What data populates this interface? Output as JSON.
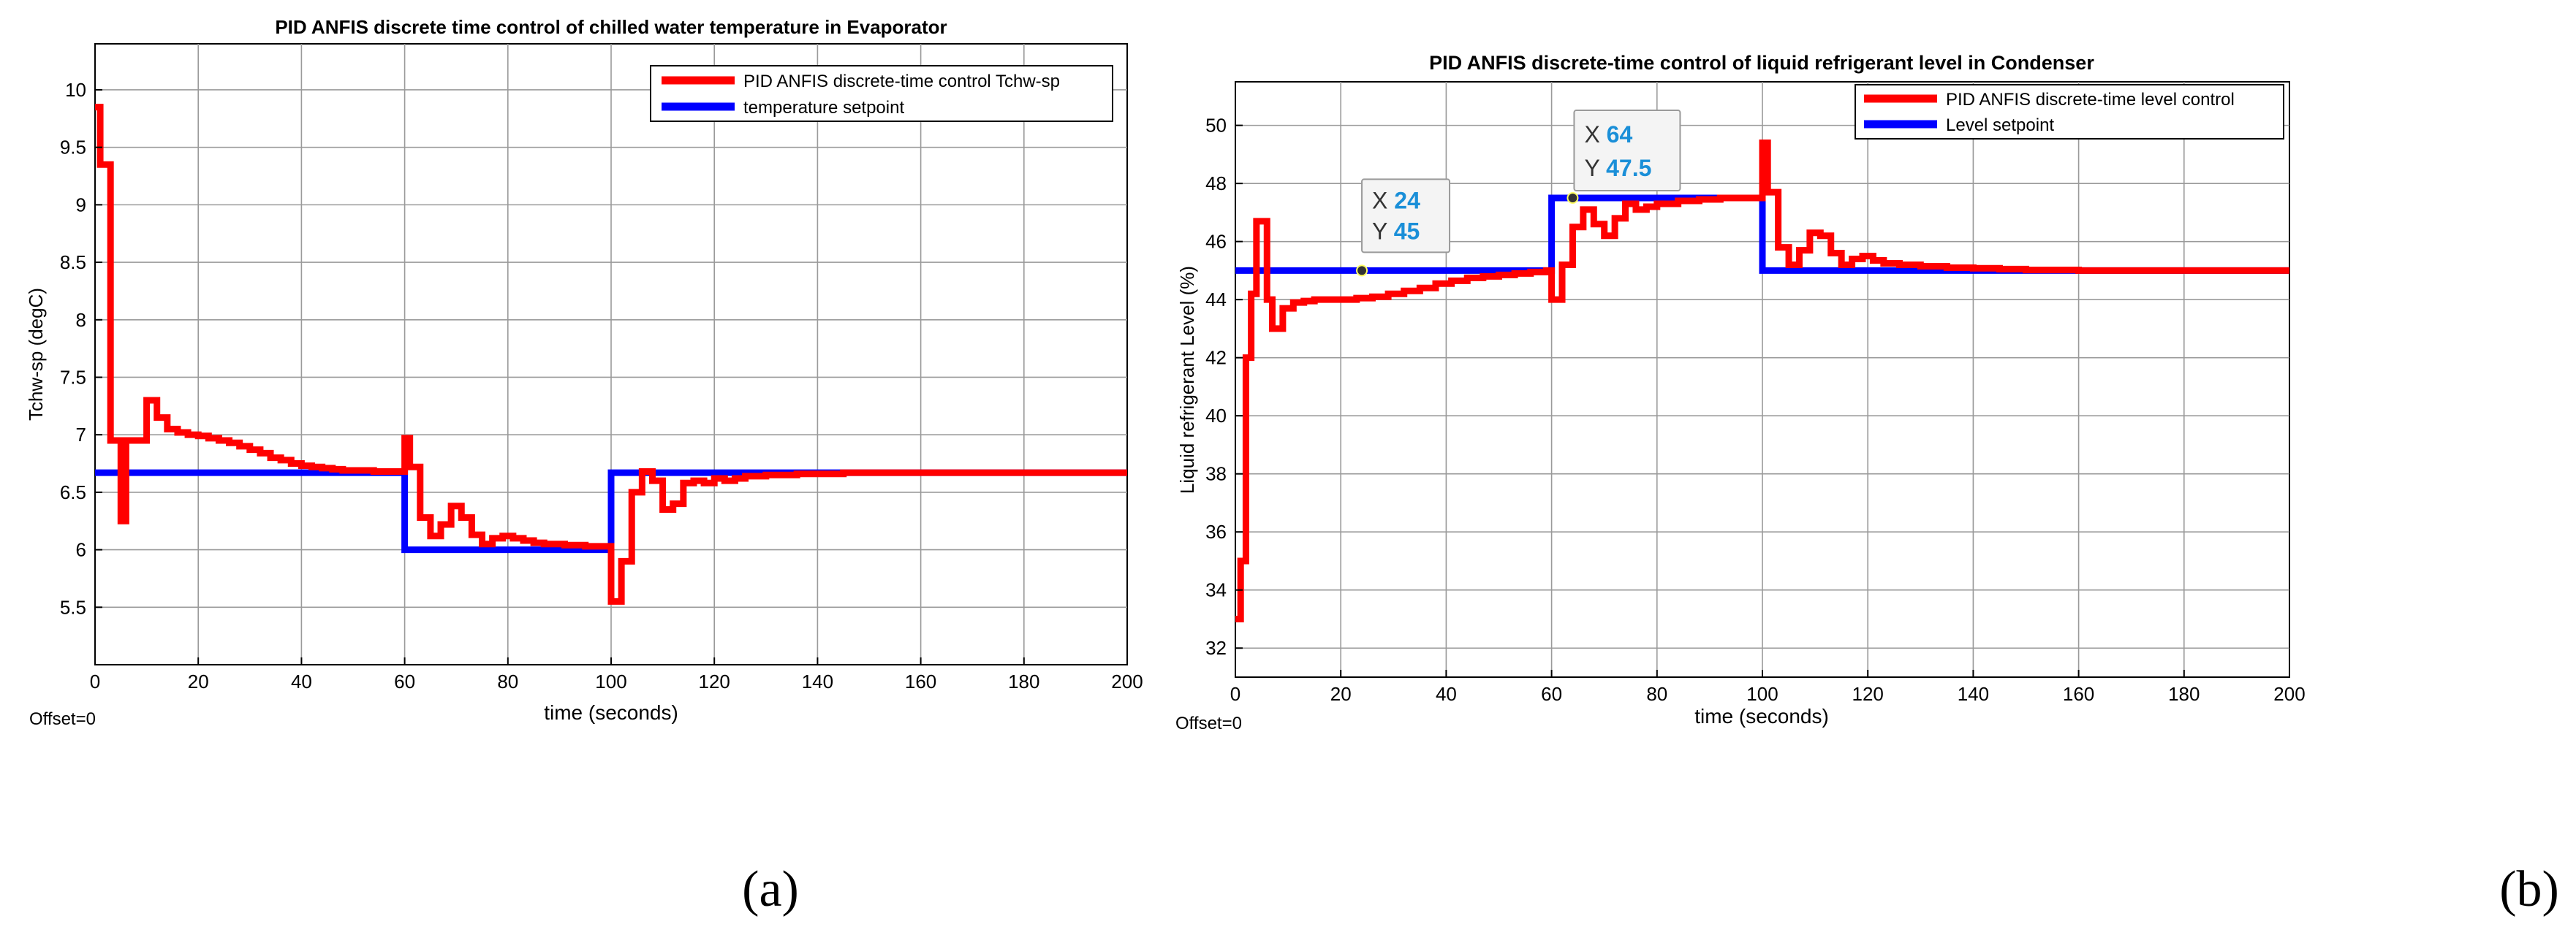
{
  "panels": [
    {
      "caption": "(a)",
      "offset_text": "Offset=0",
      "datatips": [],
      "chart_data": {
        "type": "line",
        "title": "PID ANFIS discrete time control of chilled water temperature in Evaporator",
        "xlabel": "time (seconds)",
        "ylabel": "Tchw-sp (degC)",
        "xlim": [
          0,
          200
        ],
        "ylim": [
          5,
          10.4
        ],
        "xticks": [
          0,
          20,
          40,
          60,
          80,
          100,
          120,
          140,
          160,
          180,
          200
        ],
        "yticks": [
          5.5,
          6,
          6.5,
          7,
          7.5,
          8,
          8.5,
          9,
          9.5,
          10
        ],
        "grid": true,
        "legend_position": "top-right",
        "series": [
          {
            "name": "PID ANFIS discrete-time control Tchw-sp",
            "color": "#ff0000",
            "step": true,
            "x": [
              0,
              1,
              3,
              4,
              5,
              6,
              7,
              8,
              10,
              12,
              14,
              16,
              18,
              20,
              22,
              24,
              26,
              28,
              30,
              32,
              34,
              36,
              38,
              40,
              42,
              44,
              46,
              48,
              50,
              52,
              54,
              56,
              58,
              60,
              61,
              63,
              65,
              67,
              69,
              71,
              73,
              75,
              77,
              79,
              81,
              83,
              85,
              87,
              89,
              91,
              93,
              95,
              97,
              99,
              100,
              102,
              104,
              106,
              108,
              110,
              112,
              114,
              116,
              118,
              120,
              122,
              124,
              126,
              128,
              130,
              133,
              136,
              140,
              145,
              150,
              155,
              160
            ],
            "values": [
              9.85,
              9.35,
              6.95,
              6.95,
              6.25,
              6.95,
              6.95,
              6.95,
              7.3,
              7.15,
              7.05,
              7.02,
              7.0,
              6.99,
              6.97,
              6.95,
              6.93,
              6.9,
              6.87,
              6.84,
              6.8,
              6.78,
              6.75,
              6.73,
              6.72,
              6.71,
              6.7,
              6.69,
              6.69,
              6.69,
              6.68,
              6.68,
              6.68,
              6.97,
              6.72,
              6.28,
              6.12,
              6.22,
              6.38,
              6.28,
              6.13,
              6.05,
              6.1,
              6.12,
              6.1,
              6.08,
              6.06,
              6.05,
              6.05,
              6.04,
              6.04,
              6.03,
              6.03,
              6.03,
              5.55,
              5.9,
              6.5,
              6.68,
              6.6,
              6.35,
              6.4,
              6.58,
              6.6,
              6.58,
              6.62,
              6.6,
              6.62,
              6.64,
              6.64,
              6.65,
              6.65,
              6.66,
              6.66,
              6.67,
              6.67,
              6.67,
              6.67
            ]
          },
          {
            "name": "temperature setpoint",
            "color": "#0000ff",
            "step": true,
            "x": [
              0,
              60,
              100,
              200
            ],
            "values": [
              6.67,
              6.0,
              6.67,
              6.67
            ]
          }
        ]
      }
    },
    {
      "caption": "(b)",
      "offset_text": "Offset=0",
      "datatips": [
        {
          "x_label": "X",
          "x_value": "24",
          "y_label": "Y",
          "y_value": "45",
          "x": 24,
          "y": 45,
          "anchor": "above"
        },
        {
          "x_label": "X",
          "x_value": "64",
          "y_label": "Y",
          "y_value": "47.5",
          "x": 64,
          "y": 47.5,
          "anchor": "above"
        }
      ],
      "chart_data": {
        "type": "line",
        "title": "PID ANFIS discrete-time control of liquid refrigerant level in Condenser",
        "xlabel": "time (seconds)",
        "ylabel": "Liquid refrigerant Level (%)",
        "xlim": [
          0,
          200
        ],
        "ylim": [
          31,
          51.5
        ],
        "xticks": [
          0,
          20,
          40,
          60,
          80,
          100,
          120,
          140,
          160,
          180,
          200
        ],
        "yticks": [
          32,
          34,
          36,
          38,
          40,
          42,
          44,
          46,
          48,
          50
        ],
        "grid": true,
        "legend_position": "top-right",
        "series": [
          {
            "name": "PID ANFIS discrete-time level control",
            "color": "#ff0000",
            "step": true,
            "x": [
              0,
              1,
              2,
              3,
              4,
              6,
              7,
              9,
              11,
              13,
              15,
              17,
              20,
              23,
              26,
              29,
              32,
              35,
              38,
              41,
              44,
              47,
              50,
              53,
              56,
              59,
              60,
              62,
              64,
              66,
              68,
              70,
              72,
              74,
              76,
              78,
              80,
              84,
              88,
              92,
              96,
              100,
              101,
              103,
              105,
              107,
              109,
              111,
              113,
              115,
              117,
              119,
              121,
              123,
              126,
              130,
              135,
              140,
              145,
              150,
              160
            ],
            "values": [
              33,
              35,
              42,
              44.2,
              46.7,
              44,
              43,
              43.7,
              43.9,
              43.95,
              44,
              44,
              44,
              44.05,
              44.1,
              44.2,
              44.3,
              44.4,
              44.55,
              44.65,
              44.75,
              44.8,
              44.85,
              44.9,
              44.95,
              45,
              44,
              45.2,
              46.5,
              47.1,
              46.6,
              46.2,
              46.8,
              47.3,
              47.1,
              47.2,
              47.3,
              47.4,
              47.45,
              47.5,
              47.5,
              49.4,
              47.7,
              45.8,
              45.2,
              45.7,
              46.3,
              46.2,
              45.6,
              45.2,
              45.4,
              45.5,
              45.35,
              45.25,
              45.2,
              45.15,
              45.1,
              45.08,
              45.05,
              45.02,
              45.0
            ]
          },
          {
            "name": "Level setpoint",
            "color": "#0000ff",
            "step": true,
            "x": [
              0,
              60,
              100,
              200
            ],
            "values": [
              45,
              47.5,
              45,
              45
            ]
          }
        ]
      }
    }
  ]
}
